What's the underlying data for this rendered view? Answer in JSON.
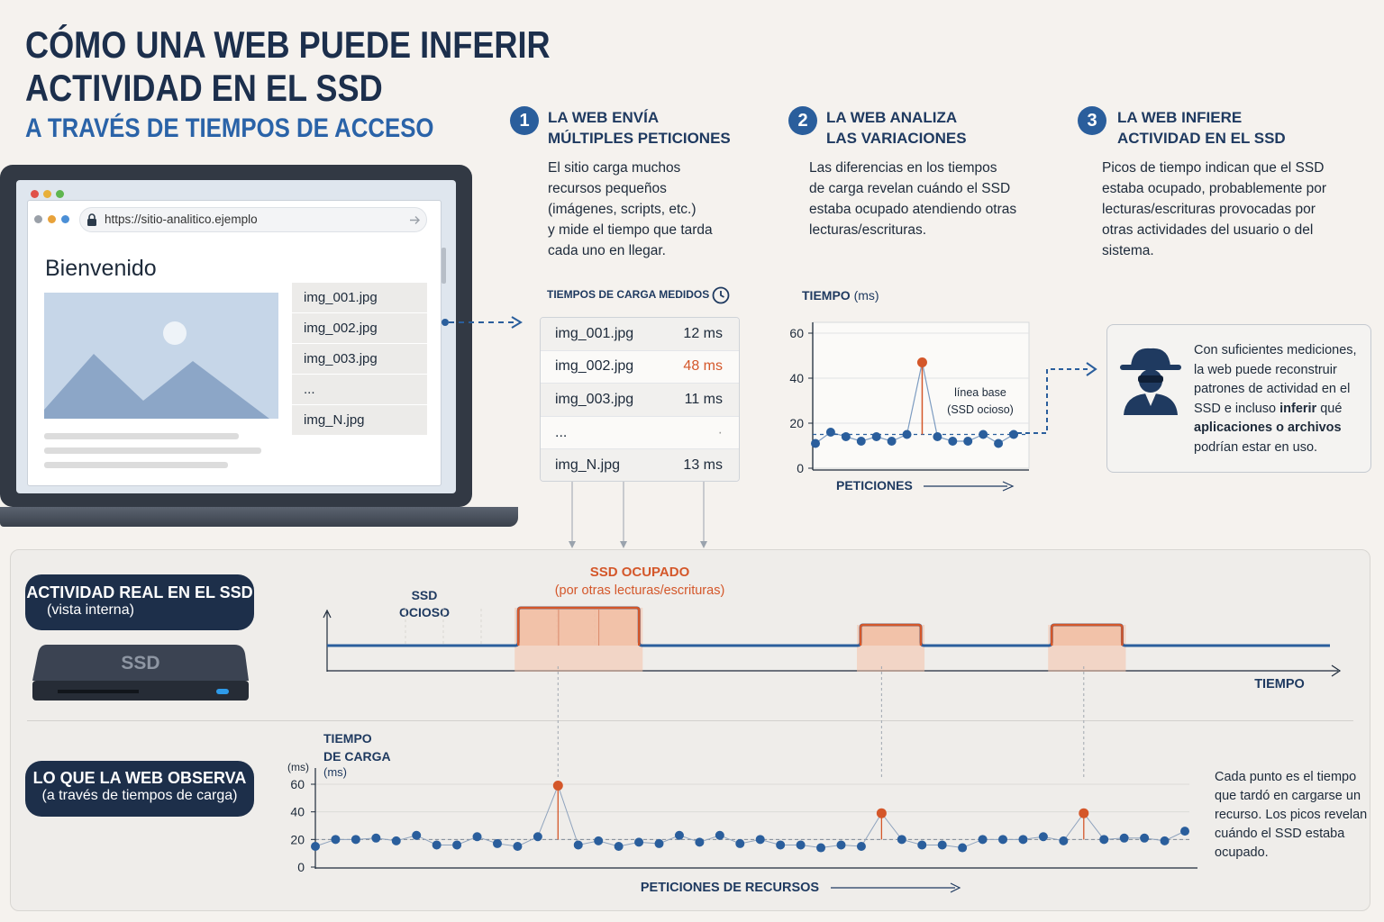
{
  "title": {
    "line1": "CÓMO UNA WEB PUEDE INFERIR",
    "line2": "ACTIVIDAD EN EL SSD",
    "subtitle": "A TRAVÉS DE TIEMPOS DE ACCESO"
  },
  "browser": {
    "url": "https://sitio-analitico.ejemplo",
    "welcome": "Bienvenido",
    "images": [
      "img_001.jpg",
      "img_002.jpg",
      "img_003.jpg",
      "...",
      "img_N.jpg"
    ]
  },
  "steps": [
    {
      "number": "1",
      "title": "LA WEB ENVÍA\nMÚLTIPLES PETICIONES",
      "body": "El sitio carga muchos\nrecursos pequeños\n(imágenes, scripts, etc.)\ny mide el tiempo que tarda\ncada uno en llegar."
    },
    {
      "number": "2",
      "title": "LA WEB ANALIZA\nLAS VARIACIONES",
      "body": "Las diferencias en los tiempos\nde carga revelan cuándo el SSD\nestaba ocupado atendiendo otras\nlecturas/escrituras."
    },
    {
      "number": "3",
      "title": "LA WEB INFIERE\nACTIVIDAD EN EL SSD",
      "body": "Picos de tiempo indican que el SSD\nestaba ocupado, probablemente por\nlecturas/escrituras provocadas por\notras actividades del usuario o del\nsistema."
    }
  ],
  "timings_table": {
    "header": "TIEMPOS DE CARGA MEDIDOS",
    "rows": [
      {
        "file": "img_001.jpg",
        "time": "12 ms",
        "highlight": false
      },
      {
        "file": "img_002.jpg",
        "time": "48 ms",
        "highlight": true
      },
      {
        "file": "img_003.jpg",
        "time": "11 ms",
        "highlight": false
      },
      {
        "file": "...",
        "time": "·",
        "highlight": false
      },
      {
        "file": "img_N.jpg",
        "time": "13 ms",
        "highlight": false
      }
    ]
  },
  "chart_data": [
    {
      "type": "scatter",
      "title": "",
      "ylabel": "TIEMPO (ms)",
      "xlabel": "PETICIONES",
      "ylim": [
        0,
        60
      ],
      "yticks": [
        0,
        20,
        40,
        60
      ],
      "baseline_label": "línea base\n(SSD ocioso)",
      "baseline_value": 15,
      "values": [
        11,
        16,
        14,
        12,
        14,
        12,
        15,
        47,
        14,
        12,
        12,
        15,
        11,
        15
      ],
      "spike_index": 7
    },
    {
      "type": "line",
      "title": "",
      "xlabel": "TIEMPO",
      "idle_label": "SSD\nOCIOSO",
      "busy_label": "SSD OCUPADO",
      "busy_sub": "(por otras lecturas/escrituras)",
      "busy_intervals": [
        [
          0.19,
          0.31
        ],
        [
          0.53,
          0.59
        ],
        [
          0.72,
          0.79
        ]
      ]
    },
    {
      "type": "scatter",
      "title": "",
      "ylabel": "TIEMPO\nDE CARGA\n(ms)",
      "ylabel_unit": "(ms)",
      "xlabel": "PETICIONES DE RECURSOS",
      "ylim": [
        0,
        60
      ],
      "yticks": [
        0,
        20,
        40,
        60
      ],
      "values": [
        15,
        20,
        20,
        21,
        19,
        23,
        16,
        16,
        22,
        17,
        15,
        22,
        59,
        16,
        19,
        15,
        18,
        17,
        23,
        18,
        23,
        17,
        20,
        16,
        16,
        14,
        16,
        15,
        39,
        20,
        16,
        16,
        14,
        20,
        20,
        20,
        22,
        19,
        39,
        20,
        21,
        21,
        19,
        26
      ],
      "spike_indices": [
        12,
        28,
        38
      ]
    }
  ],
  "inference_box": {
    "text_before": "Con suficientes mediciones, la web puede reconstruir patrones de actividad en el SSD e incluso ",
    "bold_1": "inferir",
    "text_mid": " qué ",
    "bold_2": "aplicaciones o archivos",
    "text_after": " podrían estar en uso."
  },
  "bottom_panel": {
    "real_title": "ACTIVIDAD REAL EN EL SSD",
    "real_sub": "(vista interna)",
    "ssd_label": "SSD",
    "observed_title": "LO QUE LA WEB OBSERVA",
    "observed_sub": "(a través de tiempos de carga)",
    "note": "Cada punto es el tiempo que tardó en cargarse un recurso. Los picos revelan cuándo el SSD estaba ocupado."
  },
  "colors": {
    "navy": "#1d2f4a",
    "blue": "#2a5e9c",
    "orange": "#d4572a",
    "busy_fill": "#f4c1a8"
  }
}
